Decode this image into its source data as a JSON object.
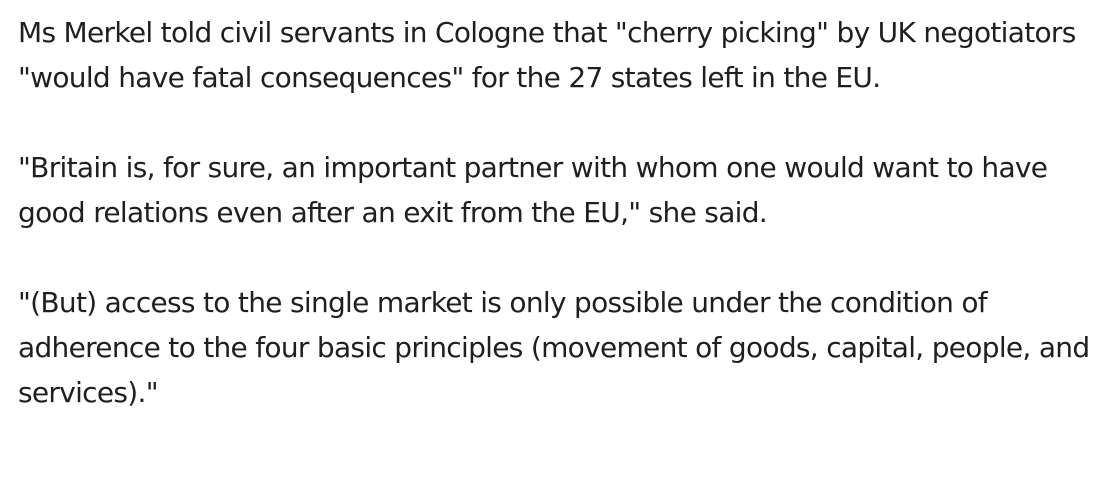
{
  "article": {
    "paragraphs": [
      "Ms Merkel told civil servants in Cologne that \"cherry picking\" by UK negotiators \"would have fatal consequences\" for the 27 states left in the EU.",
      "\"Britain is, for sure, an important partner with whom one would want to have good relations even after an exit from the EU,\" she said.",
      "\"(But) access to the single market is only possible under the condition of adherence to the four basic principles (movement of goods, capital, people, and services).\""
    ]
  },
  "colors": {
    "text": "#1f1f1f",
    "background": "#ffffff"
  }
}
